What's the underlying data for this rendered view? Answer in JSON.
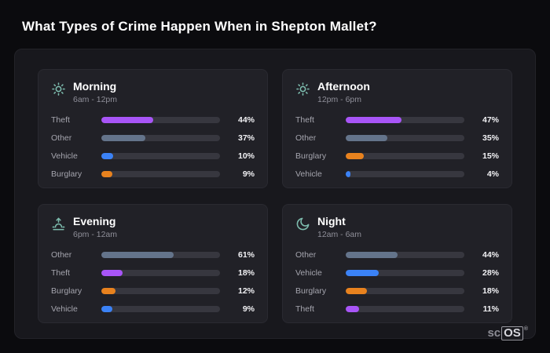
{
  "title": "What Types of Crime Happen When in Shepton Mallet?",
  "category_colors": {
    "Theft": "#a855f7",
    "Other": "#64748b",
    "Vehicle": "#3b82f6",
    "Burglary": "#e8821e"
  },
  "chart_data": [
    {
      "type": "bar",
      "title": "Morning",
      "subtitle": "6am - 12pm",
      "icon": "sun-icon",
      "xlim": [
        0,
        100
      ],
      "categories": [
        "Theft",
        "Other",
        "Vehicle",
        "Burglary"
      ],
      "values": [
        44,
        37,
        10,
        9
      ],
      "value_labels": [
        "44%",
        "37%",
        "10%",
        "9%"
      ],
      "colors": [
        "#a855f7",
        "#64748b",
        "#3b82f6",
        "#e8821e"
      ]
    },
    {
      "type": "bar",
      "title": "Afternoon",
      "subtitle": "12pm - 6pm",
      "icon": "sun-icon",
      "xlim": [
        0,
        100
      ],
      "categories": [
        "Theft",
        "Other",
        "Burglary",
        "Vehicle"
      ],
      "values": [
        47,
        35,
        15,
        4
      ],
      "value_labels": [
        "47%",
        "35%",
        "15%",
        "4%"
      ],
      "colors": [
        "#a855f7",
        "#64748b",
        "#e8821e",
        "#3b82f6"
      ]
    },
    {
      "type": "bar",
      "title": "Evening",
      "subtitle": "6pm - 12am",
      "icon": "sunset-icon",
      "xlim": [
        0,
        100
      ],
      "categories": [
        "Other",
        "Theft",
        "Burglary",
        "Vehicle"
      ],
      "values": [
        61,
        18,
        12,
        9
      ],
      "value_labels": [
        "61%",
        "18%",
        "12%",
        "9%"
      ],
      "colors": [
        "#64748b",
        "#a855f7",
        "#e8821e",
        "#3b82f6"
      ]
    },
    {
      "type": "bar",
      "title": "Night",
      "subtitle": "12am - 6am",
      "icon": "moon-icon",
      "xlim": [
        0,
        100
      ],
      "categories": [
        "Other",
        "Vehicle",
        "Burglary",
        "Theft"
      ],
      "values": [
        44,
        28,
        18,
        11
      ],
      "value_labels": [
        "44%",
        "28%",
        "18%",
        "11%"
      ],
      "colors": [
        "#64748b",
        "#3b82f6",
        "#e8821e",
        "#a855f7"
      ]
    }
  ],
  "logo": {
    "sc": "sc",
    "os": "OS",
    "reg": "®"
  }
}
